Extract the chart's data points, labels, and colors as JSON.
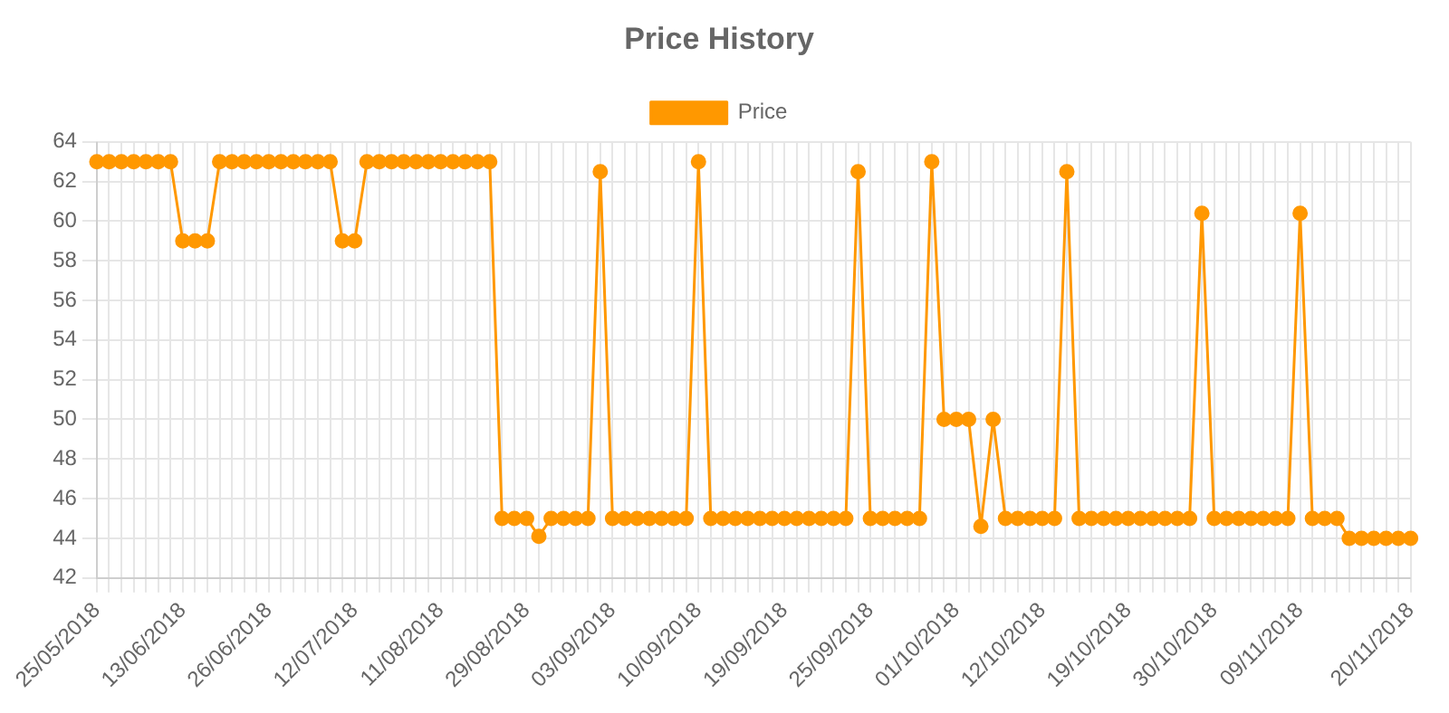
{
  "chart_data": {
    "type": "line",
    "title": "Price History",
    "categories": [
      "25/05/2018",
      null,
      null,
      null,
      null,
      null,
      null,
      "13/06/2018",
      null,
      null,
      null,
      null,
      null,
      null,
      "26/06/2018",
      null,
      null,
      null,
      null,
      null,
      null,
      "12/07/2018",
      null,
      null,
      null,
      null,
      null,
      null,
      "11/08/2018",
      null,
      null,
      null,
      null,
      null,
      null,
      "29/08/2018",
      null,
      null,
      null,
      null,
      null,
      null,
      "03/09/2018",
      null,
      null,
      null,
      null,
      null,
      null,
      "10/09/2018",
      null,
      null,
      null,
      null,
      null,
      null,
      "19/09/2018",
      null,
      null,
      null,
      null,
      null,
      null,
      "25/09/2018",
      null,
      null,
      null,
      null,
      null,
      null,
      "01/10/2018",
      null,
      null,
      null,
      null,
      null,
      null,
      "12/10/2018",
      null,
      null,
      null,
      null,
      null,
      null,
      "19/10/2018",
      null,
      null,
      null,
      null,
      null,
      null,
      "30/10/2018",
      null,
      null,
      null,
      null,
      null,
      null,
      "09/11/2018",
      null,
      null,
      null,
      null,
      null,
      null,
      null,
      null,
      "20/11/2018"
    ],
    "series": [
      {
        "name": "Price",
        "color": "#ff9800",
        "values": [
          63,
          63,
          63,
          63,
          63,
          63,
          63,
          59,
          59,
          59,
          63,
          63,
          63,
          63,
          63,
          63,
          63,
          63,
          63,
          63,
          59,
          59,
          63,
          63,
          63,
          63,
          63,
          63,
          63,
          63,
          63,
          63,
          63,
          45,
          45,
          45,
          44.1,
          45,
          45,
          45,
          45,
          62.5,
          45,
          45,
          45,
          45,
          45,
          45,
          45,
          63,
          45,
          45,
          45,
          45,
          45,
          45,
          45,
          45,
          45,
          45,
          45,
          45,
          62.5,
          45,
          45,
          45,
          45,
          45,
          63,
          50,
          50,
          50,
          44.6,
          50,
          45,
          45,
          45,
          45,
          45,
          62.5,
          45,
          45,
          45,
          45,
          45,
          45,
          45,
          45,
          45,
          45,
          60.4,
          45,
          45,
          45,
          45,
          45,
          45,
          45,
          60.4,
          45,
          45,
          45,
          44,
          44,
          44,
          44,
          44,
          44
        ]
      }
    ],
    "ylim": [
      42,
      64
    ],
    "yticks": [
      42,
      44,
      46,
      48,
      50,
      52,
      54,
      56,
      58,
      60,
      62,
      64
    ],
    "grid": true,
    "legend": "top",
    "marker": "circle",
    "line_style": "solid"
  }
}
